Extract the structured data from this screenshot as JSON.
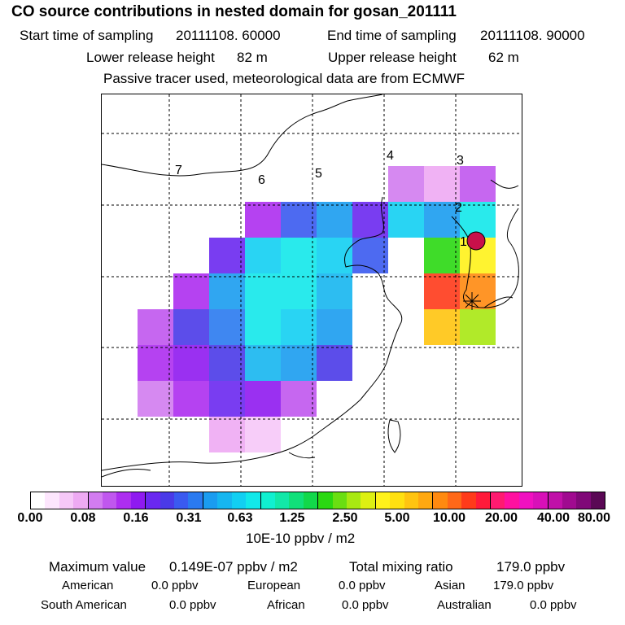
{
  "header": {
    "title": "CO  source contributions in nested domain for gosan_201111",
    "start_label": "Start time of sampling",
    "start_value": "20111108. 60000",
    "end_label": "End time of sampling",
    "end_value": "20111108. 90000",
    "lower_label": "Lower release height",
    "lower_value": "82 m",
    "upper_label": "Upper release height",
    "upper_value": "62 m",
    "note": "Passive tracer used, meteorological data are from ECMWF"
  },
  "chart_data": {
    "type": "heatmap",
    "title": "CO  source contributions in nested domain for gosan_201111",
    "colorbar": {
      "ticks": [
        "0.00",
        "0.08",
        "0.16",
        "0.31",
        "0.63",
        "1.25",
        "2.50",
        "5.00",
        "10.00",
        "20.00",
        "40.00",
        "80.00"
      ],
      "units": "10E-10 ppbv / m2",
      "colors": [
        "#ffffff",
        "#fde6fd",
        "#f6c8f8",
        "#eeaaf3",
        "#d27cf0",
        "#c057ee",
        "#ad2ef0",
        "#8f1af0",
        "#6a28f0",
        "#4a3ae8",
        "#3a5af0",
        "#2a7af0",
        "#1a9cf0",
        "#16b6f0",
        "#12cff2",
        "#12e8ea",
        "#10f0d0",
        "#12e8a8",
        "#10e07a",
        "#12d84a",
        "#2ad812",
        "#6ade12",
        "#a8e812",
        "#ddf012",
        "#fff21a",
        "#ffe010",
        "#ffc410",
        "#ffa810",
        "#ff8a10",
        "#ff6818",
        "#ff3a1a",
        "#ff1a3a",
        "#ff1a70",
        "#ff10a0",
        "#f010c0",
        "#d810b8",
        "#c010a8",
        "#a00a90",
        "#800878",
        "#5a0855"
      ]
    },
    "region_labels": [
      "1",
      "2",
      "3",
      "4",
      "5",
      "6",
      "7"
    ],
    "cells": [
      {
        "lon": 8,
        "lat": 2,
        "level": 4
      },
      {
        "lon": 9,
        "lat": 2,
        "level": 3
      },
      {
        "lon": 10,
        "lat": 2,
        "level": 5
      },
      {
        "lon": 4,
        "lat": 3,
        "level": 6
      },
      {
        "lon": 5,
        "lat": 3,
        "level": 10
      },
      {
        "lon": 6,
        "lat": 3,
        "level": 12
      },
      {
        "lon": 7,
        "lat": 3,
        "level": 8
      },
      {
        "lon": 8,
        "lat": 3,
        "level": 14
      },
      {
        "lon": 9,
        "lat": 3,
        "level": 12
      },
      {
        "lon": 10,
        "lat": 3,
        "level": 15
      },
      {
        "lon": 3,
        "lat": 4,
        "level": 8
      },
      {
        "lon": 4,
        "lat": 4,
        "level": 14
      },
      {
        "lon": 5,
        "lat": 4,
        "level": 15
      },
      {
        "lon": 6,
        "lat": 4,
        "level": 14
      },
      {
        "lon": 7,
        "lat": 4,
        "level": 10
      },
      {
        "lon": 9,
        "lat": 4,
        "level": 20
      },
      {
        "lon": 10,
        "lat": 4,
        "level": 24
      },
      {
        "lon": 2,
        "lat": 5,
        "level": 6
      },
      {
        "lon": 3,
        "lat": 5,
        "level": 12
      },
      {
        "lon": 4,
        "lat": 5,
        "level": 15
      },
      {
        "lon": 5,
        "lat": 5,
        "level": 15
      },
      {
        "lon": 6,
        "lat": 5,
        "level": 13
      },
      {
        "lon": 9,
        "lat": 5,
        "level": 30
      },
      {
        "lon": 10,
        "lat": 5,
        "level": 28
      },
      {
        "lon": 1,
        "lat": 6,
        "level": 5
      },
      {
        "lon": 2,
        "lat": 6,
        "level": 9
      },
      {
        "lon": 3,
        "lat": 6,
        "level": 11
      },
      {
        "lon": 4,
        "lat": 6,
        "level": 15
      },
      {
        "lon": 5,
        "lat": 6,
        "level": 14
      },
      {
        "lon": 6,
        "lat": 6,
        "level": 12
      },
      {
        "lon": 9,
        "lat": 6,
        "level": 26
      },
      {
        "lon": 10,
        "lat": 6,
        "level": 22
      },
      {
        "lon": 1,
        "lat": 7,
        "level": 6
      },
      {
        "lon": 2,
        "lat": 7,
        "level": 7
      },
      {
        "lon": 3,
        "lat": 7,
        "level": 9
      },
      {
        "lon": 4,
        "lat": 7,
        "level": 13
      },
      {
        "lon": 5,
        "lat": 7,
        "level": 12
      },
      {
        "lon": 6,
        "lat": 7,
        "level": 9
      },
      {
        "lon": 1,
        "lat": 8,
        "level": 4
      },
      {
        "lon": 2,
        "lat": 8,
        "level": 6
      },
      {
        "lon": 3,
        "lat": 8,
        "level": 8
      },
      {
        "lon": 4,
        "lat": 8,
        "level": 7
      },
      {
        "lon": 5,
        "lat": 8,
        "level": 5
      },
      {
        "lon": 3,
        "lat": 9,
        "level": 3
      },
      {
        "lon": 4,
        "lat": 9,
        "level": 2
      }
    ]
  },
  "colorbar_units": "10E-10 ppbv / m2",
  "stats": {
    "max_label": "Maximum value",
    "max_value": "0.149E-07 ppbv / m2",
    "total_label": "Total mixing ratio",
    "total_value": "179.0 ppbv",
    "american_label": "American",
    "american_value": "0.0 ppbv",
    "european_label": "European",
    "european_value": "0.0 ppbv",
    "asian_label": "Asian",
    "asian_value": "179.0 ppbv",
    "south_american_label": "South American",
    "south_american_value": "0.0 ppbv",
    "african_label": "African",
    "african_value": "0.0 ppbv",
    "australian_label": "Australian",
    "australian_value": "0.0 ppbv"
  }
}
